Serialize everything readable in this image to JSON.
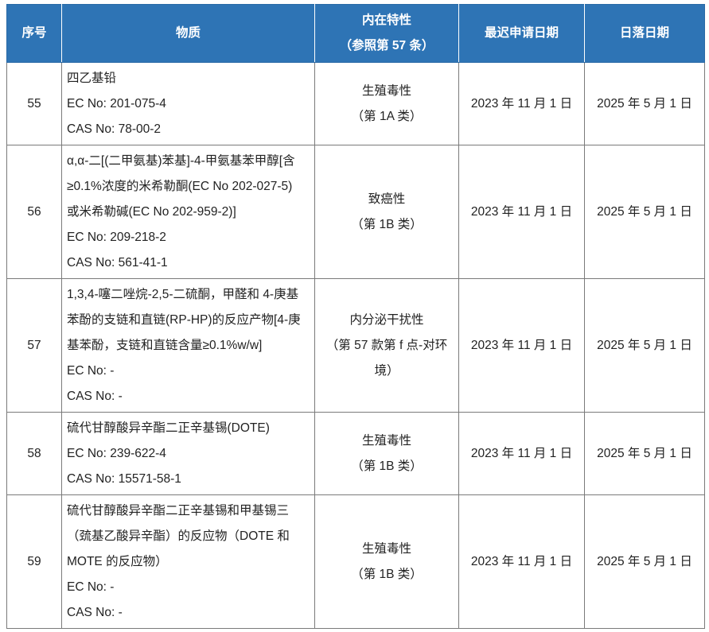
{
  "header": {
    "no": "序号",
    "substance": "物质",
    "property_line1": "内在特性",
    "property_line2": "（参照第 57 条）",
    "latest_application_date": "最迟申请日期",
    "sunset_date": "日落日期"
  },
  "rows": [
    {
      "no": "55",
      "substance": [
        "四乙基铅",
        "EC No: 201-075-4",
        "CAS No: 78-00-2"
      ],
      "property": [
        "生殖毒性",
        "（第 1A 类）"
      ],
      "latest_application_date": "2023 年 11 月 1 日",
      "sunset_date": "2025 年 5 月 1 日"
    },
    {
      "no": "56",
      "substance": [
        "α,α-二[(二甲氨基)苯基]-4-甲氨基苯甲醇[含",
        "≥0.1%浓度的米希勒酮(EC No 202-027-5)",
        "或米希勒碱(EC No 202-959-2)]",
        "EC No: 209-218-2",
        "CAS No: 561-41-1"
      ],
      "property": [
        "致癌性",
        "（第 1B 类）"
      ],
      "latest_application_date": "2023 年 11 月 1 日",
      "sunset_date": "2025 年 5 月 1 日"
    },
    {
      "no": "57",
      "substance": [
        "1,3,4-噻二唑烷-2,5-二硫酮，甲醛和 4-庚基",
        "苯酚的支链和直链(RP-HP)的反应产物[4-庚",
        "基苯酚，支链和直链含量≥0.1%w/w]",
        "EC No: -",
        "CAS No: -"
      ],
      "property": [
        "内分泌干扰性",
        "（第 57 款第 f 点-对环",
        "境）"
      ],
      "latest_application_date": "2023 年 11 月 1 日",
      "sunset_date": "2025 年 5 月 1 日"
    },
    {
      "no": "58",
      "substance": [
        "硫代甘醇酸异辛酯二正辛基锡(DOTE)",
        "EC No: 239-622-4",
        "CAS No: 15571-58-1"
      ],
      "property": [
        "生殖毒性",
        "（第 1B 类）"
      ],
      "latest_application_date": "2023 年 11 月 1 日",
      "sunset_date": "2025 年 5 月 1 日"
    },
    {
      "no": "59",
      "substance": [
        "硫代甘醇酸异辛酯二正辛基锡和甲基锡三",
        "（巯基乙酸异辛酯）的反应物（DOTE 和",
        "MOTE 的反应物）",
        "EC No: -",
        "CAS No: -"
      ],
      "property": [
        "生殖毒性",
        "（第 1B 类）"
      ],
      "latest_application_date": "2023 年 11 月 1 日",
      "sunset_date": "2025 年 5 月 1 日"
    }
  ],
  "colors": {
    "header_bg": "#2e74b5",
    "header_text": "#ffffff",
    "border": "#7a7a7a"
  }
}
